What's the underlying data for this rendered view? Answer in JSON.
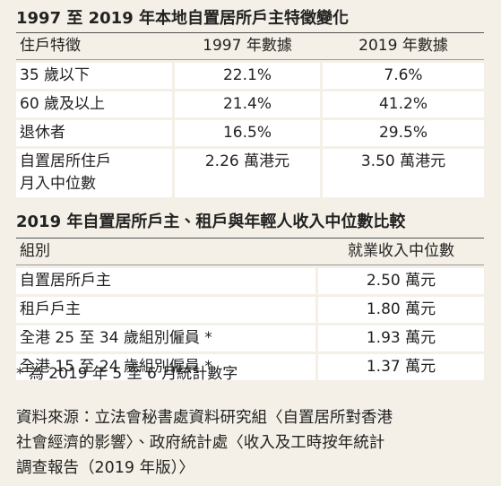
{
  "tables": [
    {
      "title": "1997 至 2019 年本地自置居所戶主特徵變化",
      "header": [
        "住戶特徵",
        "1997 年數據",
        "2019 年數據"
      ],
      "rows": [
        [
          "35 歲以下",
          "22.1%",
          "7.6%"
        ],
        [
          "60 歲及以上",
          "21.4%",
          "41.2%"
        ],
        [
          "退休者",
          "16.5%",
          "29.5%"
        ],
        [
          "自置居所住戶\n月入中位數",
          "2.26 萬港元",
          "3.50 萬港元"
        ]
      ]
    },
    {
      "title": "2019 年自置居所戶主、租戶與年輕人收入中位數比較",
      "header": [
        "組別",
        "就業收入中位數"
      ],
      "rows": [
        [
          "自置居所戶主",
          "2.50 萬元"
        ],
        [
          "租戶戶主",
          "1.80 萬元"
        ],
        [
          "全港 25 至 34 歲組別僱員 *",
          "1.93 萬元"
        ],
        [
          "全港 15 至 24 歲組別僱員 *",
          "1.37 萬元"
        ]
      ]
    }
  ],
  "footnote": "* 為 2019 年 5 至 6 月統計數字",
  "source": [
    "資料來源：立法會秘書處資料研究組〈自置居所對香港",
    "社會經濟的影響〉、政府統計處〈收入及工時按年統計",
    "調查報告（2019 年版）〉"
  ]
}
